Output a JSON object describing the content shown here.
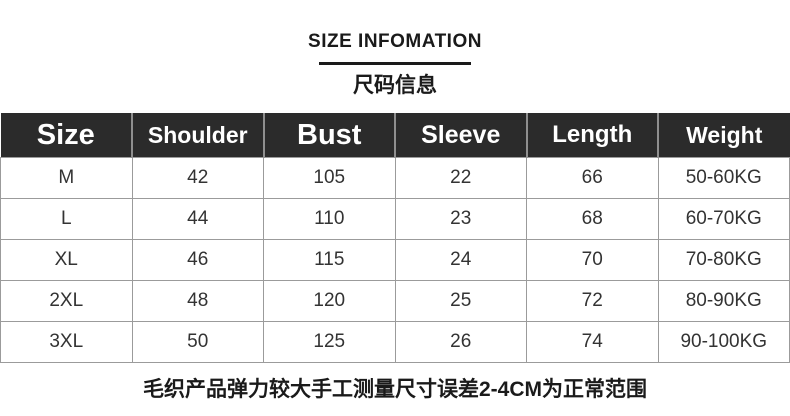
{
  "header": {
    "title": "SIZE INFOMATION",
    "subtitle": "尺码信息"
  },
  "table": {
    "columns": [
      "Size",
      "Shoulder",
      "Bust",
      "Sleeve",
      "Length",
      "Weight"
    ],
    "rows": [
      [
        "M",
        "42",
        "105",
        "22",
        "66",
        "50-60KG"
      ],
      [
        "L",
        "44",
        "110",
        "23",
        "68",
        "60-70KG"
      ],
      [
        "XL",
        "46",
        "115",
        "24",
        "70",
        "70-80KG"
      ],
      [
        "2XL",
        "48",
        "120",
        "25",
        "72",
        "80-90KG"
      ],
      [
        "3XL",
        "50",
        "125",
        "26",
        "74",
        "90-100KG"
      ]
    ]
  },
  "footer": {
    "note": "毛织产品弹力较大手工测量尺寸误差2-4CM为正常范围"
  },
  "colors": {
    "header_bg": "#2b2b2b",
    "header_text": "#ffffff",
    "header_divider": "#8f8f8f",
    "body_border": "#9b9b9b",
    "body_text": "#333333",
    "accent_text": "#1a1a1a"
  }
}
